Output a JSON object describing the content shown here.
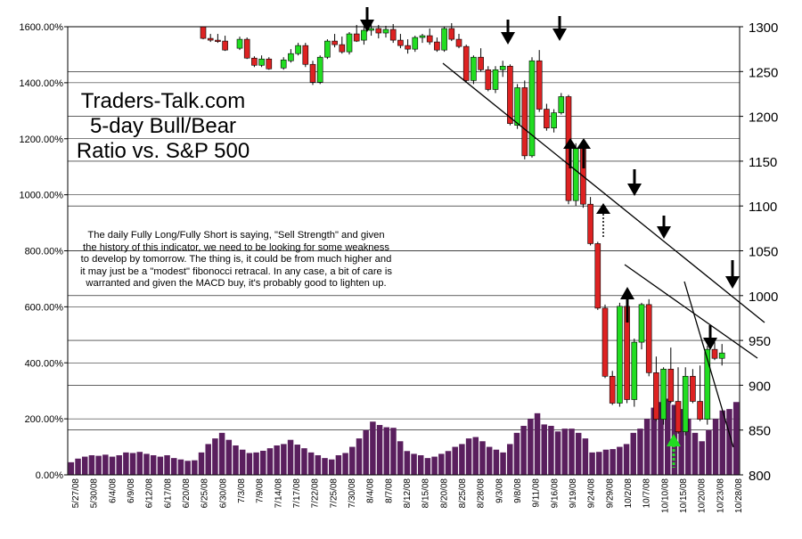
{
  "chart_data": {
    "type": "bar",
    "annotation_title": "Traders-Talk.com 5-day Bull/Bear Ratio vs. S&P 500",
    "annotation_note": "The daily Fully Long/Fully Short is saying, \"Sell Strength\" and given the history of this indicator, we need to be looking for some weakness to develop by tomorrow. The thing is, it could be from much higher and it may just be a \"modest\" fibonocci retracal. In any case, a bit of care is warranted and given the MACD buy, it's probably good to lighten up.",
    "left_axis": {
      "min": 0,
      "max": 1600,
      "step": 200,
      "ticks": [
        "0.00%",
        "200.00%",
        "400.00%",
        "600.00%",
        "800.00%",
        "1000.00%",
        "1200.00%",
        "1400.00%",
        "1600.00%"
      ]
    },
    "right_axis": {
      "min": 800,
      "max": 1300,
      "step": 50,
      "ticks": [
        "800",
        "850",
        "900",
        "950",
        "1000",
        "1050",
        "1100",
        "1150",
        "1200",
        "1250",
        "1300"
      ]
    },
    "grid": "horizontal",
    "x_labels": [
      "5/27/08",
      "5/30/08",
      "6/4/08",
      "6/9/08",
      "6/12/08",
      "6/17/08",
      "6/20/08",
      "6/25/08",
      "6/30/08",
      "7/3/08",
      "7/9/08",
      "7/14/08",
      "7/17/08",
      "7/22/08",
      "7/25/08",
      "7/30/08",
      "8/4/08",
      "8/7/08",
      "8/12/08",
      "8/15/08",
      "8/20/08",
      "8/25/08",
      "8/28/08",
      "9/3/08",
      "9/8/08",
      "9/11/08",
      "9/16/08",
      "9/19/08",
      "9/24/08",
      "9/29/08",
      "10/2/08",
      "10/7/08",
      "10/10/08",
      "10/15/08",
      "10/20/08",
      "10/23/08",
      "10/28/08"
    ],
    "ratio_series": {
      "colors": {
        "volume": "#5a1f5e"
      },
      "values": [
        45,
        58,
        65,
        70,
        68,
        72,
        65,
        70,
        80,
        78,
        82,
        75,
        70,
        65,
        70,
        60,
        55,
        50,
        52,
        80,
        110,
        130,
        150,
        125,
        105,
        90,
        78,
        80,
        86,
        95,
        105,
        110,
        125,
        108,
        95,
        80,
        70,
        60,
        55,
        70,
        78,
        100,
        130,
        160,
        190,
        178,
        170,
        168,
        120,
        85,
        75,
        70,
        60,
        65,
        75,
        85,
        100,
        110,
        130,
        135,
        120,
        100,
        90,
        80,
        110,
        150,
        175,
        200,
        220,
        180,
        175,
        155,
        165,
        165,
        150,
        130,
        80,
        82,
        90,
        92,
        100,
        110,
        150,
        165,
        200,
        240,
        260,
        272,
        250,
        235,
        200,
        150,
        120,
        160,
        200,
        230,
        235,
        260
      ]
    },
    "sp500_candles": {
      "colors": {
        "up": "#22dd22",
        "down": "#dd2222"
      },
      "x_start": 0,
      "x_step": 1,
      "ohlc": [
        [
          1,
          1300,
          1300,
          1286,
          1287
        ],
        [
          2,
          1287,
          1292,
          1283,
          1285
        ],
        [
          3,
          1285,
          1292,
          1282,
          1284
        ],
        [
          4,
          1284,
          1290,
          1273,
          1274
        ],
        [
          6,
          1276,
          1289,
          1274,
          1286
        ],
        [
          7,
          1286,
          1288,
          1264,
          1265
        ],
        [
          8,
          1265,
          1267,
          1255,
          1257
        ],
        [
          9,
          1257,
          1268,
          1255,
          1264
        ],
        [
          10,
          1264,
          1266,
          1252,
          1253
        ],
        [
          12,
          1254,
          1266,
          1252,
          1263
        ],
        [
          13,
          1262,
          1275,
          1260,
          1270
        ],
        [
          14,
          1270,
          1282,
          1268,
          1279
        ],
        [
          15,
          1279,
          1282,
          1255,
          1258
        ],
        [
          16,
          1258,
          1262,
          1235,
          1238
        ],
        [
          17,
          1238,
          1268,
          1236,
          1266
        ],
        [
          18,
          1266,
          1286,
          1264,
          1284
        ],
        [
          19,
          1284,
          1292,
          1277,
          1280
        ],
        [
          20,
          1280,
          1289,
          1270,
          1272
        ],
        [
          21,
          1272,
          1294,
          1269,
          1292
        ],
        [
          22,
          1292,
          1302,
          1283,
          1284
        ],
        [
          23,
          1285,
          1300,
          1280,
          1296
        ],
        [
          24,
          1296,
          1304,
          1290,
          1298
        ],
        [
          25,
          1298,
          1302,
          1287,
          1293
        ],
        [
          26,
          1293,
          1301,
          1288,
          1297
        ],
        [
          27,
          1297,
          1303,
          1282,
          1285
        ],
        [
          28,
          1285,
          1292,
          1276,
          1279
        ],
        [
          29,
          1279,
          1286,
          1270,
          1275
        ],
        [
          30,
          1275,
          1290,
          1272,
          1288
        ],
        [
          31,
          1288,
          1292,
          1282,
          1290
        ],
        [
          32,
          1290,
          1298,
          1280,
          1283
        ],
        [
          33,
          1283,
          1288,
          1272,
          1274
        ],
        [
          34,
          1274,
          1300,
          1272,
          1298
        ],
        [
          35,
          1298,
          1304,
          1284,
          1286
        ],
        [
          36,
          1286,
          1292,
          1276,
          1278
        ],
        [
          37,
          1278,
          1280,
          1238,
          1240
        ],
        [
          38,
          1240,
          1268,
          1236,
          1266
        ],
        [
          39,
          1266,
          1276,
          1250,
          1252
        ],
        [
          40,
          1252,
          1256,
          1228,
          1230
        ],
        [
          41,
          1230,
          1256,
          1226,
          1252
        ],
        [
          42,
          1252,
          1262,
          1244,
          1256
        ],
        [
          43,
          1256,
          1258,
          1190,
          1192
        ],
        [
          44,
          1190,
          1236,
          1186,
          1232
        ],
        [
          45,
          1232,
          1240,
          1152,
          1156
        ],
        [
          46,
          1156,
          1266,
          1154,
          1262
        ],
        [
          47,
          1262,
          1274,
          1205,
          1208
        ],
        [
          48,
          1208,
          1214,
          1184,
          1187
        ],
        [
          49,
          1187,
          1208,
          1182,
          1204
        ],
        [
          50,
          1204,
          1226,
          1202,
          1222
        ],
        [
          51,
          1222,
          1224,
          1102,
          1106
        ],
        [
          52,
          1106,
          1170,
          1100,
          1164
        ],
        [
          53,
          1164,
          1166,
          1098,
          1102
        ],
        [
          54,
          1102,
          1110,
          1056,
          1058
        ],
        [
          55,
          1058,
          1060,
          984,
          986
        ],
        [
          56,
          986,
          990,
          908,
          910
        ],
        [
          57,
          910,
          916,
          878,
          880
        ],
        [
          58,
          880,
          992,
          876,
          988
        ],
        [
          59,
          988,
          996,
          880,
          884
        ],
        [
          60,
          884,
          952,
          876,
          948
        ],
        [
          61,
          948,
          992,
          940,
          990
        ],
        [
          62,
          990,
          996,
          910,
          914
        ],
        [
          63,
          914,
          932,
          860,
          862
        ],
        [
          64,
          862,
          920,
          856,
          918
        ],
        [
          65,
          918,
          942,
          880,
          882
        ],
        [
          66,
          882,
          920,
          846,
          848
        ],
        [
          67,
          848,
          920,
          844,
          910
        ],
        [
          68,
          910,
          918,
          880,
          882
        ],
        [
          69,
          882,
          922,
          860,
          862
        ],
        [
          70,
          862,
          944,
          856,
          940
        ],
        [
          71,
          940,
          948,
          928,
          930
        ],
        [
          72,
          930,
          946,
          922,
          936
        ]
      ]
    }
  }
}
